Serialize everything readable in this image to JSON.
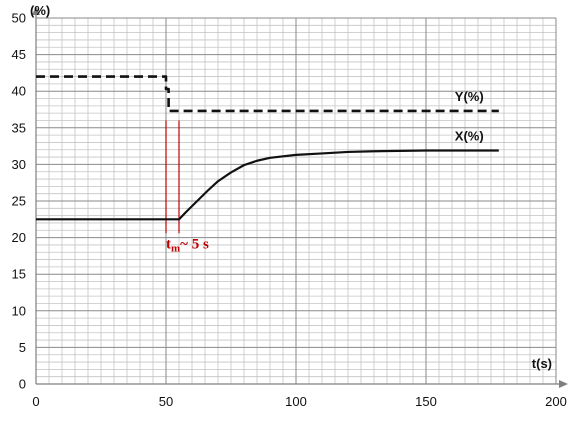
{
  "chart_data": {
    "type": "line",
    "xlabel": "t(s)",
    "ylabel": "(%)",
    "xlim": [
      0,
      200
    ],
    "ylim": [
      0,
      50
    ],
    "x_ticks": [
      0,
      50,
      100,
      150,
      200
    ],
    "y_ticks": [
      0,
      5,
      10,
      15,
      20,
      25,
      30,
      35,
      40,
      45,
      50
    ],
    "grid": true,
    "minor_grid": {
      "x_step": 5,
      "y_step": 1
    },
    "series": [
      {
        "name": "Y(%)",
        "style": "dashed",
        "color": "#111111",
        "x": [
          0,
          50,
          50,
          51,
          51,
          178
        ],
        "y": [
          42,
          42,
          40.3,
          40.3,
          37.3,
          37.3
        ]
      },
      {
        "name": "X(%)",
        "style": "solid",
        "color": "#111111",
        "x": [
          0,
          55,
          58,
          62,
          66,
          70,
          75,
          80,
          85,
          90,
          100,
          110,
          120,
          130,
          150,
          178
        ],
        "y": [
          22.5,
          22.5,
          23.6,
          25.0,
          26.4,
          27.7,
          28.9,
          29.9,
          30.5,
          30.9,
          31.3,
          31.5,
          31.7,
          31.8,
          31.9,
          31.9
        ]
      }
    ],
    "annotations": [
      {
        "type": "vline",
        "x": 50,
        "y_range": [
          20.6,
          36
        ],
        "color": "#c00000"
      },
      {
        "type": "vline",
        "x": 55,
        "y_range": [
          20.6,
          36
        ],
        "color": "#c00000"
      }
    ],
    "annotation_label": {
      "text_main": "t",
      "text_sub": "m",
      "text_rest": "~ 5 s",
      "x": 50,
      "y": 18.5,
      "color": "#c00000"
    }
  }
}
